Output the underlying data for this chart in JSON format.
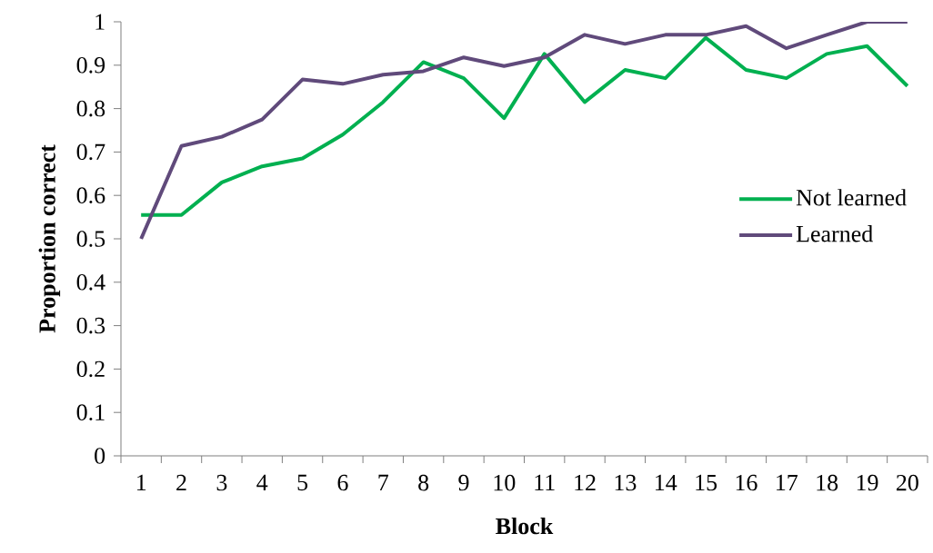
{
  "chart_data": {
    "type": "line",
    "xlabel": "Block",
    "ylabel": "Proportion correct",
    "categories": [
      "1",
      "2",
      "3",
      "4",
      "5",
      "6",
      "7",
      "8",
      "9",
      "10",
      "11",
      "12",
      "13",
      "14",
      "15",
      "16",
      "17",
      "18",
      "19",
      "20"
    ],
    "series": [
      {
        "name": "Not learned",
        "color": "#00b050",
        "values": [
          0.555,
          0.555,
          0.63,
          0.667,
          0.685,
          0.74,
          0.815,
          0.907,
          0.87,
          0.778,
          0.926,
          0.815,
          0.889,
          0.87,
          0.963,
          0.889,
          0.87,
          0.926,
          0.944,
          0.852
        ]
      },
      {
        "name": "Learned",
        "color": "#604a7b",
        "values": [
          0.5,
          0.714,
          0.735,
          0.775,
          0.867,
          0.857,
          0.878,
          0.886,
          0.918,
          0.898,
          0.918,
          0.97,
          0.949,
          0.97,
          0.97,
          0.99,
          0.939,
          0.97,
          1.0,
          1.0
        ]
      }
    ],
    "ylim": [
      0,
      1
    ],
    "yticks": [
      0,
      0.1,
      0.2,
      0.3,
      0.4,
      0.5,
      0.6,
      0.7,
      0.8,
      0.9,
      1
    ],
    "legend": "right"
  }
}
